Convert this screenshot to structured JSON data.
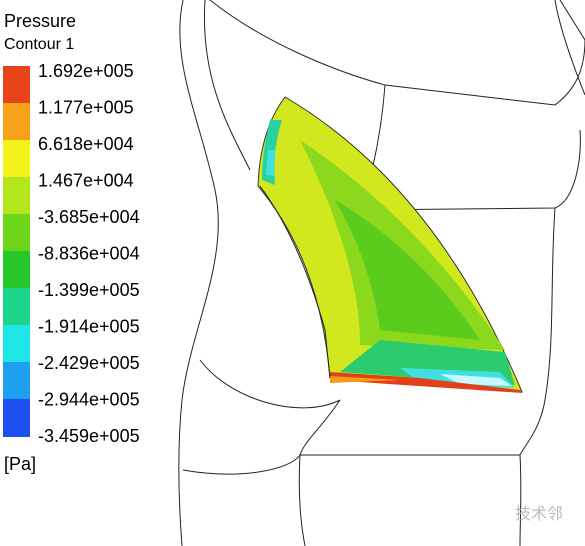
{
  "legend": {
    "title": "Pressure",
    "subtitle": "Contour 1",
    "levels": [
      "1.692e+005",
      "1.177e+005",
      "6.618e+004",
      "1.467e+004",
      "-3.685e+004",
      "-8.836e+004",
      "-1.399e+005",
      "-1.914e+005",
      "-2.429e+005",
      "-2.944e+005",
      "-3.459e+005"
    ],
    "unit": "[Pa]"
  },
  "watermark": "技术邻"
}
